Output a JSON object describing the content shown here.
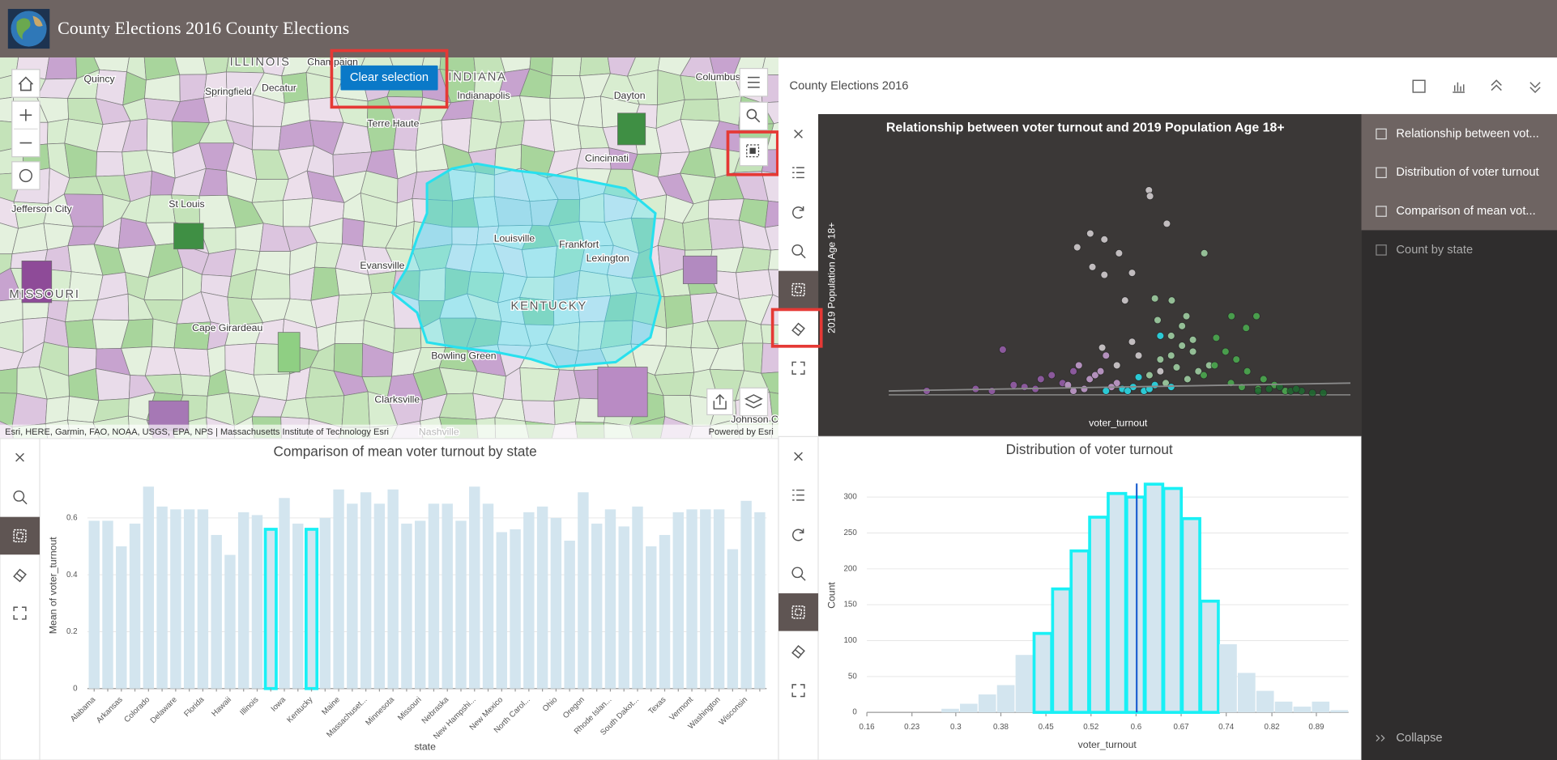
{
  "header": {
    "title": "County Elections 2016 County Elections"
  },
  "map": {
    "button": "Clear selection",
    "labels": [
      "ILLINOIS",
      "Champaign",
      "INDIANA",
      "Columbus",
      "Quincy",
      "Springfield",
      "Decatur",
      "Indianapolis",
      "Dayton",
      "Terre Haute",
      "Cincinnati",
      "Jefferson City",
      "St Louis",
      "Louisville",
      "Frankfort",
      "Lexington",
      "Evansville",
      "MISSOURI",
      "KENTUCKY",
      "Cape Girardeau",
      "Bowling Green",
      "Clarksville",
      "Nashville",
      "Johnson C"
    ],
    "attribution": "Esri, HERE, Garmin, FAO, NOAA, USGS, EPA, NPS | Massachusetts Institute of Technology Esri",
    "powered_by": "Powered by Esri"
  },
  "panel": {
    "title": "County Elections 2016"
  },
  "sidebar": {
    "items": [
      "Relationship between vot...",
      "Distribution of voter turnout",
      "Comparison of mean vot...",
      "Count by state"
    ],
    "collapse": "Collapse"
  },
  "chart_data": [
    {
      "type": "scatter",
      "title": "Relationship between voter turnout and 2019 Population Age 18+",
      "x_label": "voter_turnout",
      "y_label": "2019 Population Age 18+",
      "xlim": [
        0.1,
        0.95
      ],
      "ylim": [
        0,
        120
      ],
      "series": [
        {
          "color": "#d9d4d6",
          "x": [
            0.579,
            0.581,
            0.612,
            0.471,
            0.497,
            0.447,
            0.524,
            0.475,
            0.497,
            0.548,
            0.535,
            0.493,
            0.548,
            0.56,
            0.52,
            0.6
          ],
          "values": [
            104,
            101,
            87,
            82,
            79,
            75,
            72,
            65,
            61,
            62,
            48,
            24,
            27,
            20,
            15,
            12
          ]
        },
        {
          "color": "#a5d6a7",
          "x": [
            0.681,
            0.59,
            0.621,
            0.648,
            0.595,
            0.62,
            0.64,
            0.66,
            0.6,
            0.63,
            0.58,
            0.67,
            0.65,
            0.61,
            0.69,
            0.62,
            0.64,
            0.66
          ],
          "values": [
            72,
            49,
            48,
            40,
            38,
            30,
            25,
            22,
            18,
            14,
            10,
            12,
            8,
            6,
            15,
            20,
            35,
            28
          ]
        },
        {
          "color": "#4caf50",
          "x": [
            0.731,
            0.777,
            0.758,
            0.703,
            0.72,
            0.74,
            0.7,
            0.76,
            0.79,
            0.68,
            0.73,
            0.75,
            0.81,
            0.78,
            0.83
          ],
          "values": [
            40,
            40,
            34,
            29,
            22,
            18,
            15,
            12,
            8,
            10,
            6,
            4,
            5,
            3,
            2
          ]
        },
        {
          "color": "#1e6b30",
          "x": [
            0.8,
            0.84,
            0.86,
            0.88,
            0.82,
            0.9,
            0.85,
            0.78
          ],
          "values": [
            3,
            2,
            2,
            1,
            4,
            1,
            3,
            2
          ]
        },
        {
          "color": "#9a5fae",
          "x": [
            0.31,
            0.17,
            0.26,
            0.35,
            0.38,
            0.4,
            0.33,
            0.42,
            0.37,
            0.29,
            0.44
          ],
          "values": [
            23,
            2,
            3,
            4,
            8,
            10,
            5,
            6,
            3,
            2,
            12
          ]
        },
        {
          "color": "#c9a0d4",
          "x": [
            0.45,
            0.47,
            0.43,
            0.5,
            0.48,
            0.46,
            0.52,
            0.44,
            0.49,
            0.51
          ],
          "values": [
            15,
            8,
            5,
            20,
            10,
            3,
            6,
            2,
            12,
            4
          ]
        },
        {
          "color": "#29e3f0",
          "x": [
            0.53,
            0.55,
            0.57,
            0.59,
            0.56,
            0.58,
            0.5,
            0.6,
            0.54,
            0.62
          ],
          "values": [
            3,
            4,
            2,
            5,
            9,
            3,
            2,
            30,
            2,
            4
          ]
        }
      ],
      "trend": {
        "color": "#8a8a8a",
        "x": [
          0.1,
          0.95
        ],
        "values": [
          2,
          6
        ]
      }
    },
    {
      "type": "histogram",
      "title": "Distribution of voter turnout",
      "x_label": "voter_turnout",
      "y_label": "Count",
      "color": "#d3e5ef",
      "bins": [
        0.16,
        0.19,
        0.22,
        0.25,
        0.28,
        0.31,
        0.34,
        0.37,
        0.4,
        0.43,
        0.46,
        0.49,
        0.52,
        0.55,
        0.58,
        0.61,
        0.64,
        0.67,
        0.7,
        0.73,
        0.76,
        0.79,
        0.82,
        0.85,
        0.88,
        0.91,
        0.94
      ],
      "values": [
        0,
        0,
        0,
        0,
        5,
        12,
        25,
        38,
        80,
        110,
        172,
        225,
        272,
        305,
        300,
        318,
        312,
        270,
        155,
        95,
        55,
        30,
        15,
        8,
        15,
        3
      ],
      "stroke_colors": [
        null,
        null,
        null,
        null,
        null,
        null,
        null,
        null,
        null,
        "#19f0f5",
        "#19f0f5",
        "#19f0f5",
        "#19f0f5",
        "#19f0f5",
        "#19f0f5",
        "#19f0f5",
        "#19f0f5",
        "#19f0f5",
        "#19f0f5",
        null,
        null,
        null,
        null,
        null,
        null,
        null
      ],
      "reference_line": 0.597,
      "reference_color": "#1e60d0",
      "xlim": [
        0.16,
        0.94
      ],
      "ylim": [
        0,
        330
      ],
      "xticks": [
        {
          "value": 0.16,
          "label": "0.16"
        },
        {
          "value": 0.233,
          "label": "0.23"
        },
        {
          "value": 0.304,
          "label": "0.3"
        },
        {
          "value": 0.377,
          "label": "0.38"
        },
        {
          "value": 0.45,
          "label": "0.45"
        },
        {
          "value": 0.523,
          "label": "0.52"
        },
        {
          "value": 0.596,
          "label": "0.6"
        },
        {
          "value": 0.669,
          "label": "0.67"
        },
        {
          "value": 0.742,
          "label": "0.74"
        },
        {
          "value": 0.816,
          "label": "0.82"
        },
        {
          "value": 0.888,
          "label": "0.89"
        }
      ],
      "yticks": [
        0,
        50,
        100,
        150,
        200,
        250,
        300
      ],
      "grid": true
    },
    {
      "type": "bar",
      "title": "Comparison of mean voter turnout by state",
      "x_label": "state",
      "y_label": "Mean of voter_turnout",
      "color": "#d3e5ef",
      "categories": [
        "Alabama",
        null,
        "Arkansas",
        null,
        "Colorado",
        null,
        "Delaware",
        null,
        "Florida",
        null,
        "Hawaii",
        null,
        "Illinois",
        null,
        "Iowa",
        null,
        "Kentucky",
        null,
        "Maine",
        null,
        "Massachuset...",
        null,
        "Minnesota",
        null,
        "Missouri",
        null,
        "Nebraska",
        null,
        "New Hampshi...",
        null,
        "New Mexico",
        null,
        "North Carol...",
        null,
        "Ohio",
        null,
        "Oregon",
        null,
        "Rhode Islan...",
        null,
        "South Dakot...",
        null,
        "Texas",
        null,
        "Vermont",
        null,
        "Washington",
        null,
        "Wisconsin",
        null
      ],
      "values": [
        0.59,
        0.59,
        0.5,
        0.58,
        0.71,
        0.64,
        0.63,
        0.63,
        0.63,
        0.54,
        0.47,
        0.62,
        0.61,
        0.56,
        0.67,
        0.58,
        0.56,
        0.6,
        0.7,
        0.65,
        0.69,
        0.65,
        0.7,
        0.58,
        0.59,
        0.65,
        0.65,
        0.59,
        0.71,
        0.65,
        0.55,
        0.56,
        0.62,
        0.64,
        0.6,
        0.52,
        0.69,
        0.58,
        0.63,
        0.57,
        0.64,
        0.5,
        0.54,
        0.62,
        0.63,
        0.63,
        0.63,
        0.49,
        0.66,
        0.62
      ],
      "stroke_colors": [
        null,
        null,
        null,
        null,
        null,
        null,
        null,
        null,
        null,
        null,
        null,
        null,
        null,
        "#19f0f5",
        null,
        null,
        "#19f0f5",
        null,
        null,
        null,
        null,
        null,
        null,
        null,
        null,
        null,
        null,
        null,
        null,
        null,
        null,
        null,
        null,
        null,
        null,
        null,
        null,
        null,
        null,
        null,
        null,
        null,
        null,
        null,
        null,
        null,
        null,
        null,
        null,
        null
      ],
      "ylim": [
        0,
        0.75
      ],
      "yticks": [
        0,
        0.2,
        0.4,
        0.6
      ],
      "grid": true
    }
  ]
}
